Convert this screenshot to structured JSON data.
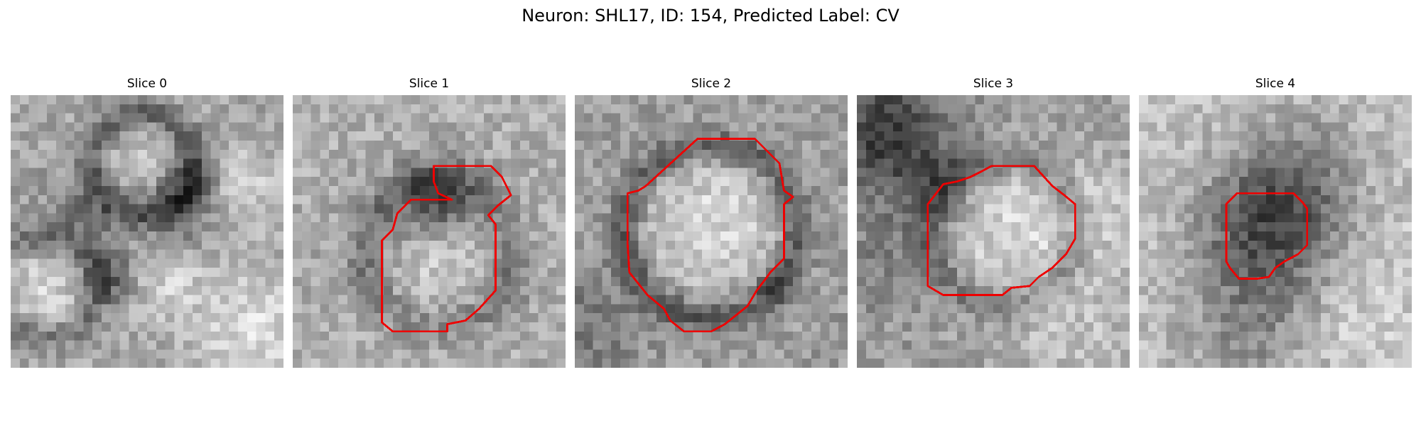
{
  "figure": {
    "title": "Neuron: SHL17, ID: 154, Predicted Label: CV"
  },
  "colors": {
    "contour": "#ee0000",
    "background": "#ffffff"
  },
  "panels": [
    {
      "title": "Slice 0",
      "has_contour": false
    },
    {
      "title": "Slice 1",
      "has_contour": true
    },
    {
      "title": "Slice 2",
      "has_contour": true
    },
    {
      "title": "Slice 3",
      "has_contour": true
    },
    {
      "title": "Slice 4",
      "has_contour": true
    }
  ]
}
